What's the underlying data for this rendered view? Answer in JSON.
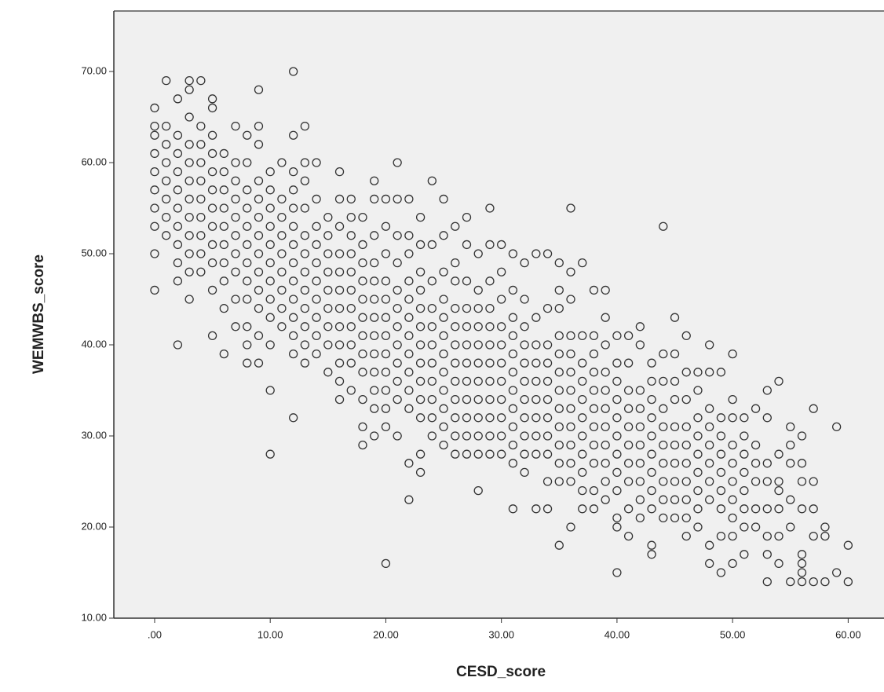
{
  "chart_data": {
    "type": "scatter",
    "x_label": "CESD_score",
    "y_label": "WEMWBS_score",
    "xlim": [
      -3.53,
      63.1
    ],
    "ylim": [
      10,
      76.64
    ],
    "xticks": [
      {
        "value": 0,
        "label": ".00"
      },
      {
        "value": 10,
        "label": "10.00"
      },
      {
        "value": 20,
        "label": "20.00"
      },
      {
        "value": 30,
        "label": "30.00"
      },
      {
        "value": 40,
        "label": "40.00"
      },
      {
        "value": 50,
        "label": "50.00"
      },
      {
        "value": 60,
        "label": "60.00"
      }
    ],
    "yticks": [
      {
        "value": 10,
        "label": "10.00"
      },
      {
        "value": 20,
        "label": "20.00"
      },
      {
        "value": 30,
        "label": "30.00"
      },
      {
        "value": 40,
        "label": "40.00"
      },
      {
        "value": 50,
        "label": "50.00"
      },
      {
        "value": 60,
        "label": "60.00"
      },
      {
        "value": 70,
        "label": "70.00"
      }
    ],
    "color": "#333333",
    "x": [
      0,
      0,
      0,
      0,
      0,
      0,
      0,
      0,
      0,
      0,
      1,
      1,
      1,
      1,
      1,
      1,
      1,
      1,
      2,
      2,
      2,
      2,
      2,
      2,
      2,
      2,
      2,
      2,
      2,
      3,
      3,
      3,
      3,
      3,
      3,
      3,
      3,
      3,
      3,
      3,
      3,
      4,
      4,
      4,
      4,
      4,
      4,
      4,
      4,
      4,
      4,
      5,
      5,
      5,
      5,
      5,
      5,
      5,
      5,
      5,
      5,
      5,
      5,
      6,
      6,
      6,
      6,
      6,
      6,
      6,
      6,
      6,
      6,
      7,
      7,
      7,
      7,
      7,
      7,
      7,
      7,
      7,
      7,
      8,
      8,
      8,
      8,
      8,
      8,
      8,
      8,
      8,
      8,
      8,
      8,
      9,
      9,
      9,
      9,
      9,
      9,
      9,
      9,
      9,
      9,
      9,
      9,
      9,
      10,
      10,
      10,
      10,
      10,
      10,
      10,
      10,
      10,
      10,
      10,
      10,
      11,
      11,
      11,
      11,
      11,
      11,
      11,
      11,
      11,
      12,
      12,
      12,
      12,
      12,
      12,
      12,
      12,
      12,
      12,
      12,
      12,
      12,
      12,
      13,
      13,
      13,
      13,
      13,
      13,
      13,
      13,
      13,
      13,
      13,
      13,
      14,
      14,
      14,
      14,
      14,
      14,
      14,
      14,
      14,
      14,
      15,
      15,
      15,
      15,
      15,
      15,
      15,
      15,
      15,
      16,
      16,
      16,
      16,
      16,
      16,
      16,
      16,
      16,
      16,
      16,
      16,
      17,
      17,
      17,
      17,
      17,
      17,
      17,
      17,
      17,
      17,
      17,
      18,
      18,
      18,
      18,
      18,
      18,
      18,
      18,
      18,
      18,
      18,
      18,
      19,
      19,
      19,
      19,
      19,
      19,
      19,
      19,
      19,
      19,
      19,
      19,
      19,
      20,
      20,
      20,
      20,
      20,
      20,
      20,
      20,
      20,
      20,
      20,
      20,
      20,
      21,
      21,
      21,
      21,
      21,
      21,
      21,
      21,
      21,
      21,
      21,
      21,
      22,
      22,
      22,
      22,
      22,
      22,
      22,
      22,
      22,
      22,
      22,
      22,
      22,
      23,
      23,
      23,
      23,
      23,
      23,
      23,
      23,
      23,
      23,
      23,
      23,
      23,
      24,
      24,
      24,
      24,
      24,
      24,
      24,
      24,
      24,
      24,
      24,
      25,
      25,
      25,
      25,
      25,
      25,
      25,
      25,
      25,
      25,
      25,
      25,
      26,
      26,
      26,
      26,
      26,
      26,
      26,
      26,
      26,
      26,
      26,
      26,
      27,
      27,
      27,
      27,
      27,
      27,
      27,
      27,
      27,
      27,
      27,
      27,
      28,
      28,
      28,
      28,
      28,
      28,
      28,
      28,
      28,
      28,
      28,
      28,
      29,
      29,
      29,
      29,
      29,
      29,
      29,
      29,
      29,
      29,
      29,
      29,
      30,
      30,
      30,
      30,
      30,
      30,
      30,
      30,
      30,
      30,
      30,
      31,
      31,
      31,
      31,
      31,
      31,
      31,
      31,
      31,
      31,
      31,
      31,
      32,
      32,
      32,
      32,
      32,
      32,
      32,
      32,
      32,
      32,
      32,
      33,
      33,
      33,
      33,
      33,
      33,
      33,
      33,
      33,
      33,
      34,
      34,
      34,
      34,
      34,
      34,
      34,
      34,
      34,
      34,
      34,
      35,
      35,
      35,
      35,
      35,
      35,
      35,
      35,
      35,
      35,
      35,
      35,
      35,
      36,
      36,
      36,
      36,
      36,
      36,
      36,
      36,
      36,
      36,
      36,
      36,
      36,
      37,
      37,
      37,
      37,
      37,
      37,
      37,
      37,
      37,
      37,
      37,
      38,
      38,
      38,
      38,
      38,
      38,
      38,
      38,
      38,
      38,
      38,
      39,
      39,
      39,
      39,
      39,
      39,
      39,
      39,
      39,
      39,
      39,
      40,
      40,
      40,
      40,
      40,
      40,
      40,
      40,
      40,
      40,
      40,
      40,
      41,
      41,
      41,
      41,
      41,
      41,
      41,
      41,
      41,
      41,
      42,
      42,
      42,
      42,
      42,
      42,
      42,
      42,
      42,
      42,
      43,
      43,
      43,
      43,
      43,
      43,
      43,
      43,
      43,
      43,
      43,
      44,
      44,
      44,
      44,
      44,
      44,
      44,
      44,
      44,
      44,
      45,
      45,
      45,
      45,
      45,
      45,
      45,
      45,
      45,
      45,
      46,
      46,
      46,
      46,
      46,
      46,
      46,
      46,
      46,
      46,
      47,
      47,
      47,
      47,
      47,
      47,
      47,
      47,
      47,
      48,
      48,
      48,
      48,
      48,
      48,
      48,
      48,
      48,
      48,
      49,
      49,
      49,
      49,
      49,
      49,
      49,
      49,
      49,
      50,
      50,
      50,
      50,
      50,
      50,
      50,
      50,
      50,
      50,
      51,
      51,
      51,
      51,
      51,
      51,
      51,
      51,
      52,
      52,
      52,
      52,
      52,
      52,
      53,
      53,
      53,
      53,
      53,
      53,
      53,
      53,
      54,
      54,
      54,
      54,
      54,
      54,
      54,
      55,
      55,
      55,
      55,
      55,
      55,
      56,
      56,
      56,
      56,
      56,
      56,
      56,
      56,
      57,
      57,
      57,
      57,
      57,
      58,
      58,
      58,
      59,
      59,
      60,
      60
    ],
    "values": [
      46,
      50,
      53,
      55,
      57,
      59,
      61,
      63,
      64,
      66,
      52,
      54,
      56,
      58,
      60,
      62,
      64,
      69,
      40,
      47,
      49,
      51,
      53,
      55,
      57,
      59,
      61,
      63,
      67,
      45,
      48,
      50,
      52,
      54,
      56,
      58,
      60,
      62,
      65,
      68,
      69,
      48,
      50,
      52,
      54,
      56,
      58,
      60,
      62,
      64,
      69,
      41,
      46,
      49,
      51,
      53,
      55,
      57,
      59,
      61,
      63,
      66,
      67,
      39,
      44,
      47,
      49,
      51,
      53,
      55,
      57,
      59,
      61,
      42,
      45,
      48,
      50,
      52,
      54,
      56,
      58,
      60,
      64,
      38,
      40,
      42,
      45,
      47,
      49,
      51,
      53,
      55,
      57,
      60,
      63,
      38,
      41,
      44,
      46,
      48,
      50,
      52,
      54,
      56,
      58,
      62,
      64,
      68,
      28,
      35,
      40,
      43,
      45,
      47,
      49,
      51,
      53,
      55,
      57,
      59,
      42,
      44,
      46,
      48,
      50,
      52,
      54,
      56,
      60,
      32,
      39,
      41,
      43,
      45,
      47,
      49,
      51,
      53,
      55,
      57,
      59,
      63,
      70,
      38,
      40,
      42,
      44,
      46,
      48,
      50,
      52,
      55,
      58,
      60,
      64,
      39,
      41,
      43,
      45,
      47,
      49,
      51,
      53,
      56,
      60,
      37,
      40,
      42,
      44,
      46,
      48,
      50,
      52,
      54,
      34,
      36,
      38,
      40,
      42,
      44,
      46,
      48,
      50,
      53,
      56,
      59,
      35,
      38,
      40,
      42,
      44,
      46,
      48,
      50,
      52,
      54,
      56,
      29,
      31,
      34,
      37,
      39,
      41,
      43,
      45,
      47,
      49,
      51,
      54,
      30,
      33,
      35,
      37,
      39,
      41,
      43,
      45,
      47,
      49,
      52,
      56,
      58,
      16,
      31,
      33,
      35,
      37,
      39,
      41,
      43,
      45,
      47,
      50,
      53,
      56,
      30,
      34,
      36,
      38,
      40,
      42,
      44,
      46,
      49,
      52,
      56,
      60,
      23,
      27,
      33,
      35,
      37,
      39,
      41,
      43,
      45,
      47,
      50,
      52,
      56,
      26,
      28,
      32,
      34,
      36,
      38,
      40,
      42,
      44,
      46,
      48,
      51,
      54,
      30,
      32,
      34,
      36,
      38,
      40,
      42,
      44,
      47,
      51,
      58,
      29,
      31,
      33,
      35,
      37,
      39,
      41,
      43,
      45,
      48,
      52,
      56,
      28,
      30,
      32,
      34,
      36,
      38,
      40,
      42,
      44,
      47,
      49,
      53,
      28,
      30,
      32,
      34,
      36,
      38,
      40,
      42,
      44,
      47,
      51,
      54,
      24,
      28,
      30,
      32,
      34,
      36,
      38,
      40,
      42,
      44,
      46,
      50,
      28,
      30,
      32,
      34,
      36,
      38,
      40,
      42,
      44,
      47,
      51,
      55,
      28,
      30,
      32,
      34,
      36,
      38,
      40,
      42,
      45,
      48,
      51,
      22,
      27,
      29,
      31,
      33,
      35,
      37,
      39,
      41,
      43,
      46,
      50,
      26,
      28,
      30,
      32,
      34,
      36,
      38,
      40,
      42,
      45,
      49,
      22,
      28,
      30,
      32,
      34,
      36,
      38,
      40,
      43,
      50,
      22,
      25,
      28,
      30,
      32,
      34,
      36,
      38,
      40,
      44,
      50,
      18,
      25,
      27,
      29,
      31,
      33,
      35,
      37,
      39,
      41,
      44,
      46,
      49,
      20,
      25,
      27,
      29,
      31,
      33,
      35,
      37,
      39,
      41,
      45,
      48,
      55,
      22,
      24,
      26,
      28,
      30,
      32,
      34,
      36,
      38,
      41,
      49,
      22,
      24,
      27,
      29,
      31,
      33,
      35,
      37,
      39,
      41,
      46,
      23,
      25,
      27,
      29,
      31,
      33,
      35,
      37,
      40,
      43,
      46,
      15,
      20,
      21,
      24,
      26,
      28,
      30,
      32,
      34,
      36,
      38,
      41,
      19,
      22,
      25,
      27,
      29,
      31,
      33,
      35,
      38,
      41,
      21,
      23,
      25,
      27,
      29,
      31,
      33,
      35,
      40,
      42,
      17,
      18,
      22,
      24,
      26,
      28,
      30,
      32,
      34,
      36,
      38,
      21,
      23,
      25,
      27,
      29,
      31,
      33,
      36,
      39,
      53,
      21,
      23,
      25,
      27,
      29,
      31,
      34,
      36,
      39,
      43,
      19,
      21,
      23,
      25,
      27,
      29,
      31,
      34,
      37,
      41,
      20,
      22,
      24,
      26,
      28,
      30,
      32,
      35,
      37,
      16,
      18,
      23,
      25,
      27,
      29,
      31,
      33,
      37,
      40,
      15,
      19,
      22,
      24,
      26,
      28,
      30,
      32,
      37,
      16,
      19,
      21,
      23,
      25,
      27,
      29,
      32,
      34,
      39,
      17,
      20,
      22,
      24,
      26,
      28,
      30,
      32,
      20,
      22,
      25,
      27,
      29,
      33,
      14,
      17,
      19,
      22,
      25,
      27,
      32,
      35,
      16,
      19,
      22,
      24,
      25,
      28,
      36,
      14,
      20,
      23,
      27,
      29,
      31,
      14,
      15,
      16,
      17,
      22,
      25,
      27,
      30,
      14,
      19,
      22,
      25,
      33,
      14,
      19,
      20,
      15,
      31,
      14,
      18
    ]
  }
}
